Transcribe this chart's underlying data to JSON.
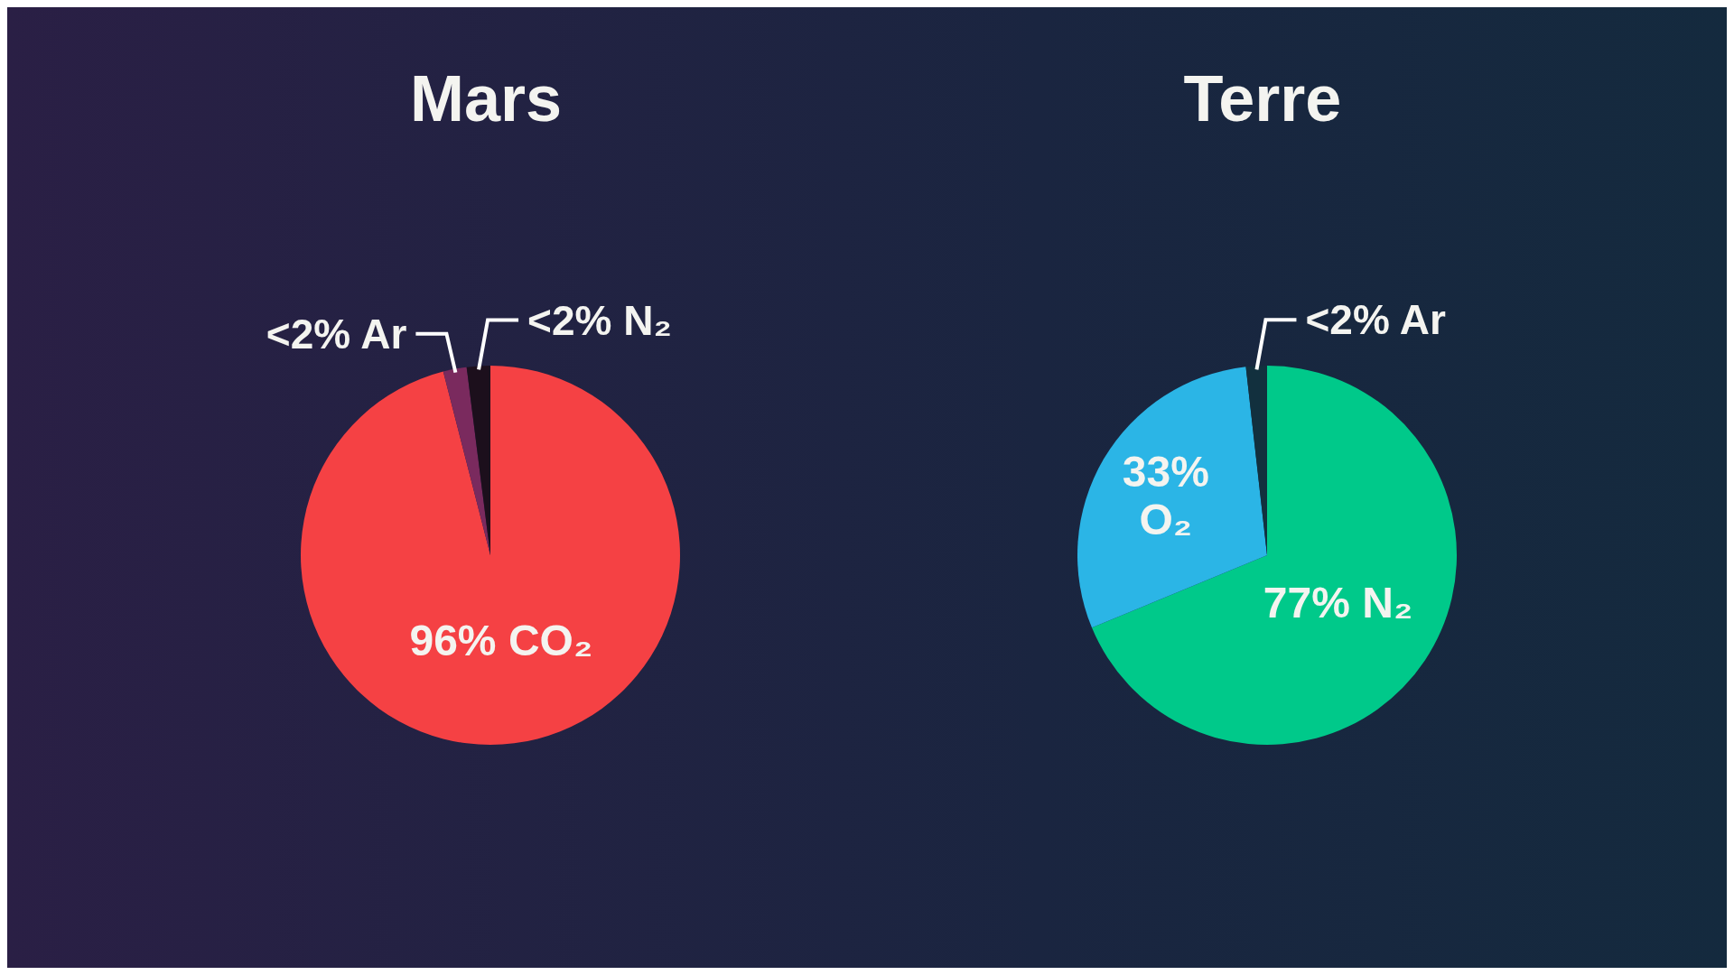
{
  "chart_data": [
    {
      "type": "pie",
      "title": "Mars",
      "categories": [
        "CO₂",
        "Ar",
        "N₂"
      ],
      "values": [
        96,
        2,
        2
      ],
      "value_labels": [
        "96%",
        "<2%",
        "<2%"
      ],
      "colors": [
        "#f54144",
        "#7a2a5e",
        "#1c0f1c"
      ]
    },
    {
      "type": "pie",
      "title": "Terre",
      "categories": [
        "N₂",
        "O₂",
        "Ar"
      ],
      "values": [
        77,
        33,
        2
      ],
      "value_labels": [
        "77%",
        "33%",
        "<2%"
      ],
      "colors": [
        "#00c98a",
        "#2bb5e6",
        "#12303e"
      ]
    }
  ]
}
